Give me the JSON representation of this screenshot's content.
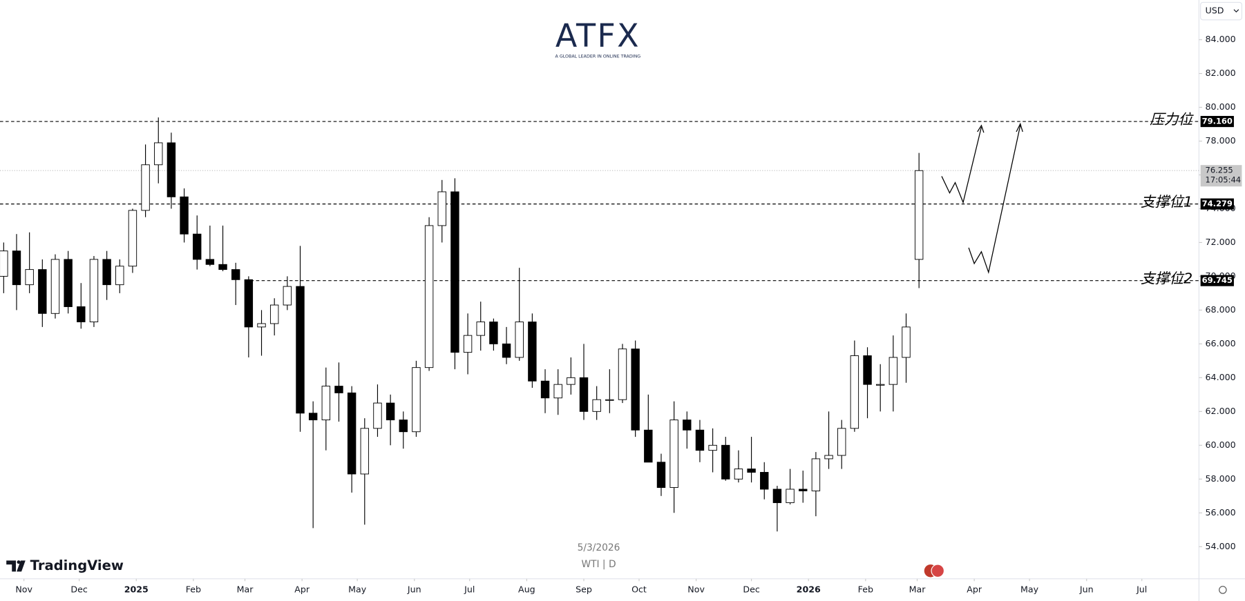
{
  "chart_data": {
    "type": "candlestick",
    "symbol": "WTI | D",
    "date": "5/3/2026",
    "brand": "TradingView",
    "logo": "ATFX",
    "tagline": "A GLOBAL LEADER IN ONLINE TRADING",
    "currency": "USD",
    "countdown": "17:05:44",
    "up_color": "#ffffff",
    "down_color": "#000000",
    "ylim": [
      52.1,
      86.35
    ],
    "yticks": [
      {
        "value": 54,
        "label": "54.000"
      },
      {
        "value": 56,
        "label": "56.000"
      },
      {
        "value": 58,
        "label": "58.000"
      },
      {
        "value": 60,
        "label": "60.000"
      },
      {
        "value": 62,
        "label": "62.000"
      },
      {
        "value": 64,
        "label": "64.000"
      },
      {
        "value": 66,
        "label": "66.000"
      },
      {
        "value": 68,
        "label": "68.000"
      },
      {
        "value": 70,
        "label": "70.000"
      },
      {
        "value": 72,
        "label": "72.000"
      },
      {
        "value": 74,
        "label": "74.000"
      },
      {
        "value": 76,
        "label": "76.000"
      },
      {
        "value": 78,
        "label": "78.000"
      },
      {
        "value": 80,
        "label": "80.000"
      },
      {
        "value": 82,
        "label": "82.000"
      },
      {
        "value": 84,
        "label": "84.000"
      }
    ],
    "xlim": [
      "2024-10-19",
      "2026-08-01"
    ],
    "xticks": [
      {
        "value": "2024-11-01",
        "label": "Nov"
      },
      {
        "value": "2024-12-01",
        "label": "Dec"
      },
      {
        "value": "2025-01-01",
        "label": "2025"
      },
      {
        "value": "2025-02-01",
        "label": "Feb"
      },
      {
        "value": "2025-03-01",
        "label": "Mar"
      },
      {
        "value": "2025-04-01",
        "label": "Apr"
      },
      {
        "value": "2025-05-01",
        "label": "May"
      },
      {
        "value": "2025-06-01",
        "label": "Jun"
      },
      {
        "value": "2025-07-01",
        "label": "Jul"
      },
      {
        "value": "2025-08-01",
        "label": "Aug"
      },
      {
        "value": "2025-09-01",
        "label": "Sep"
      },
      {
        "value": "2025-10-01",
        "label": "Oct"
      },
      {
        "value": "2025-11-01",
        "label": "Nov"
      },
      {
        "value": "2025-12-01",
        "label": "Dec"
      },
      {
        "value": "2026-01-01",
        "label": "2026"
      },
      {
        "value": "2026-02-01",
        "label": "Feb"
      },
      {
        "value": "2026-03-01",
        "label": "Mar"
      },
      {
        "value": "2026-04-01",
        "label": "Apr"
      },
      {
        "value": "2026-05-01",
        "label": "May"
      },
      {
        "value": "2026-06-01",
        "label": "Jun"
      },
      {
        "value": "2026-07-01",
        "label": "Jul"
      }
    ],
    "levels": [
      {
        "name": "压力位",
        "value": 79.16,
        "value_label": "79.160",
        "from": "2024-10-19"
      },
      {
        "name": "支撑位1",
        "value": 74.279,
        "value_label": "74.279",
        "from": "2024-10-19"
      },
      {
        "name": "支撑位2",
        "value": 69.745,
        "value_label": "69.745",
        "from": "2025-03-01"
      }
    ],
    "x": [
      "2024-10-21",
      "2024-10-28",
      "2024-11-04",
      "2024-11-11",
      "2024-11-18",
      "2024-11-25",
      "2024-12-02",
      "2024-12-09",
      "2024-12-16",
      "2024-12-23",
      "2024-12-30",
      "2025-01-06",
      "2025-01-13",
      "2025-01-20",
      "2025-01-27",
      "2025-02-03",
      "2025-02-10",
      "2025-02-17",
      "2025-02-24",
      "2025-03-03",
      "2025-03-10",
      "2025-03-17",
      "2025-03-24",
      "2025-03-31",
      "2025-04-07",
      "2025-04-14",
      "2025-04-21",
      "2025-04-28",
      "2025-05-05",
      "2025-05-12",
      "2025-05-19",
      "2025-05-26",
      "2025-06-02",
      "2025-06-09",
      "2025-06-16",
      "2025-06-23",
      "2025-06-30",
      "2025-07-07",
      "2025-07-14",
      "2025-07-21",
      "2025-07-28",
      "2025-08-04",
      "2025-08-11",
      "2025-08-18",
      "2025-08-25",
      "2025-09-01",
      "2025-09-08",
      "2025-09-15",
      "2025-09-22",
      "2025-09-29",
      "2025-10-06",
      "2025-10-13",
      "2025-10-20",
      "2025-10-27",
      "2025-11-03",
      "2025-11-10",
      "2025-11-17",
      "2025-11-24",
      "2025-12-01",
      "2025-12-08",
      "2025-12-15",
      "2025-12-22",
      "2025-12-29",
      "2026-01-05",
      "2026-01-12",
      "2026-01-19",
      "2026-01-26",
      "2026-02-02",
      "2026-02-09",
      "2026-02-16",
      "2026-02-23",
      "2026-03-02"
    ],
    "open": [
      70,
      71.5,
      69.5,
      70.4,
      67.8,
      71,
      68.2,
      67.3,
      71,
      69.5,
      70.6,
      73.9,
      76.6,
      77.9,
      74.7,
      72.5,
      71,
      70.7,
      70.4,
      69.8,
      67,
      67.2,
      68.3,
      69.4,
      61.9,
      61.5,
      63.5,
      63.1,
      58.3,
      61,
      62.5,
      61.5,
      60.8,
      64.6,
      73,
      75,
      65.5,
      66.5,
      67.3,
      66,
      65.2,
      67.3,
      63.8,
      62.8,
      63.6,
      64,
      62,
      62.7,
      62.7,
      65.7,
      60.9,
      59,
      57.5,
      61.5,
      60.9,
      59.7,
      60,
      58,
      58.6,
      58.4,
      57.4,
      56.6,
      57.4,
      57.3,
      59.2,
      59.4,
      61,
      65.3,
      63.6,
      63.6,
      65.2,
      71
    ],
    "high": [
      72,
      72.5,
      72.6,
      71,
      71.3,
      71.5,
      69.6,
      71.2,
      71.5,
      71,
      74,
      77.8,
      79.4,
      78.5,
      75.2,
      73.6,
      73,
      73,
      70.8,
      70,
      68,
      68.7,
      70,
      71.8,
      62.6,
      64.6,
      64.9,
      63.5,
      61.6,
      63.6,
      63,
      62,
      65,
      73.5,
      75.7,
      75.8,
      67.8,
      68.5,
      67.5,
      67,
      70.5,
      67.8,
      64.5,
      64.5,
      65.2,
      66,
      63.5,
      64.5,
      66,
      66.2,
      63,
      59.5,
      62.6,
      62,
      61.5,
      61,
      60.5,
      59.7,
      60.5,
      59,
      57.6,
      58.6,
      58.5,
      59.6,
      62,
      61.5,
      66.2,
      65.8,
      64.8,
      66.5,
      67.8,
      77.3
    ],
    "low": [
      69,
      68,
      69,
      67,
      67.5,
      67.8,
      66.9,
      67,
      68.6,
      69,
      70.2,
      73.5,
      75.5,
      74,
      72,
      70.4,
      70.6,
      70.3,
      68.3,
      65.2,
      65.3,
      66.5,
      68,
      60.8,
      55.1,
      59.7,
      61.4,
      57.2,
      55.3,
      60.5,
      60,
      59.8,
      60.5,
      64.4,
      72,
      64.5,
      64.2,
      65.6,
      65.6,
      64.8,
      65,
      63.4,
      61.9,
      61.8,
      63,
      61.5,
      61.5,
      61.9,
      62.5,
      60.5,
      59,
      57,
      56,
      59.8,
      59,
      58.4,
      57.9,
      57.8,
      57.8,
      56.8,
      54.9,
      56.5,
      56.6,
      55.8,
      58.6,
      58.6,
      60.8,
      61.6,
      62,
      62,
      63.7,
      69.3
    ],
    "close": [
      71.5,
      69.5,
      70.4,
      67.8,
      71,
      68.2,
      67.3,
      71,
      69.5,
      70.6,
      73.9,
      76.6,
      77.9,
      74.7,
      72.5,
      71,
      70.7,
      70.4,
      69.8,
      67,
      67.2,
      68.3,
      69.4,
      61.9,
      61.5,
      63.5,
      63.1,
      58.3,
      61,
      62.5,
      61.5,
      60.8,
      64.6,
      73,
      75,
      65.5,
      66.5,
      67.3,
      66,
      65.2,
      67.3,
      63.8,
      62.8,
      63.6,
      64,
      62,
      62.7,
      62.7,
      65.7,
      60.9,
      59,
      57.5,
      61.5,
      60.9,
      59.7,
      60,
      58,
      58.6,
      58.4,
      57.4,
      56.6,
      57.4,
      57.3,
      59.2,
      59.4,
      61,
      65.3,
      63.6,
      63.6,
      65.2,
      67,
      76.255
    ]
  }
}
